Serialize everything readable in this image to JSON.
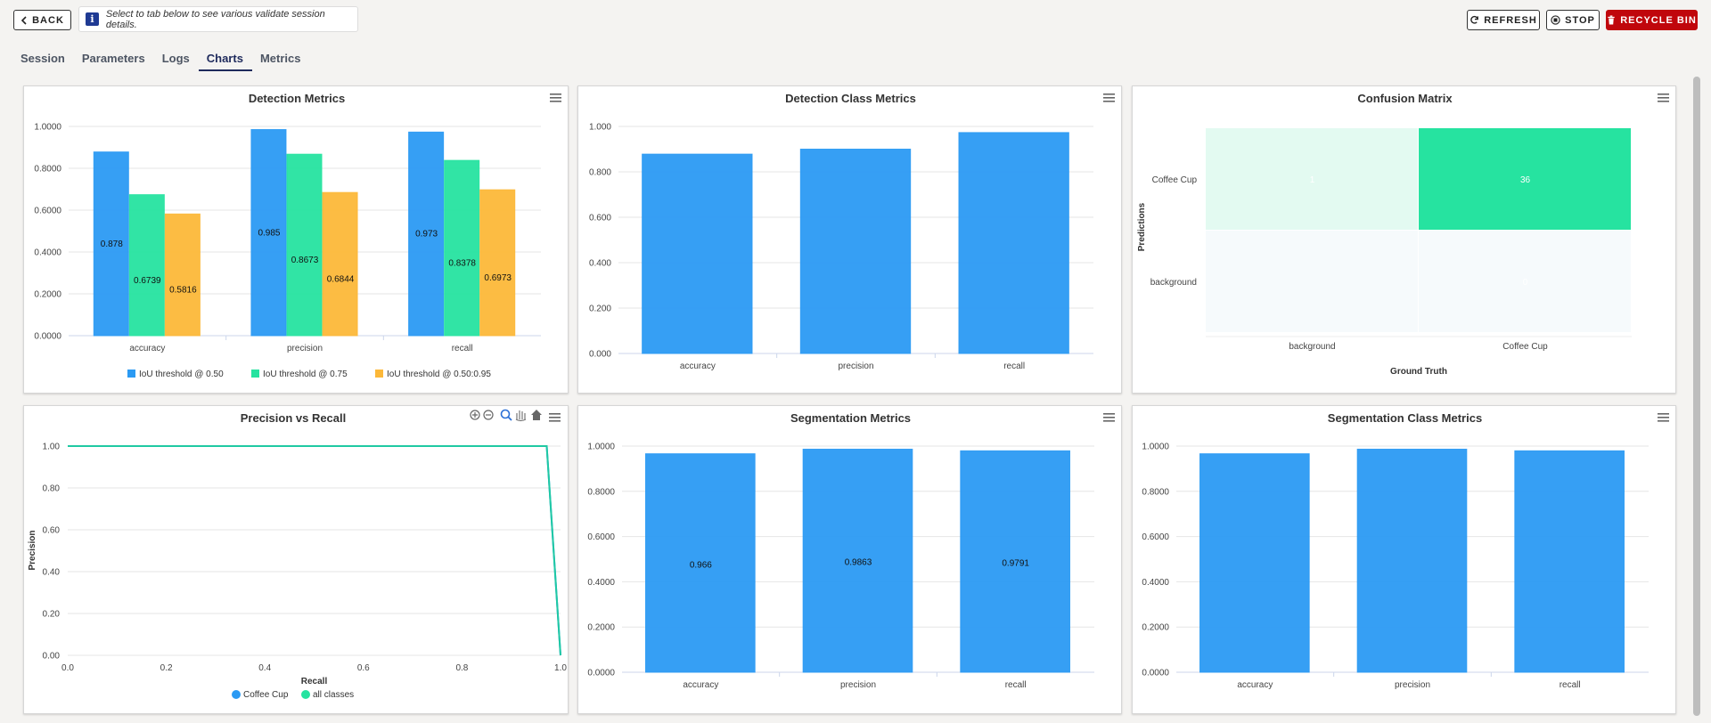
{
  "toolbar": {
    "back_label": "BACK",
    "info_text": "Select to tab below to see various validate session details.",
    "refresh_label": "REFRESH",
    "stop_label": "STOP",
    "recycle_label": "RECYCLE BIN"
  },
  "tabs": [
    {
      "label": "Session",
      "active": false
    },
    {
      "label": "Parameters",
      "active": false
    },
    {
      "label": "Logs",
      "active": false
    },
    {
      "label": "Charts",
      "active": true
    },
    {
      "label": "Metrics",
      "active": false
    }
  ],
  "colors": {
    "blue": "#2b9af3",
    "green": "#26e3a0",
    "orange": "#fcb839",
    "teal": "#20c9a3",
    "danger": "#c0060c"
  },
  "chart_data": [
    {
      "id": "detection-metrics",
      "type": "bar",
      "title": "Detection Metrics",
      "categories": [
        "accuracy",
        "precision",
        "recall"
      ],
      "series": [
        {
          "name": "IoU threshold @ 0.50",
          "values": [
            0.878,
            0.985,
            0.973
          ],
          "labels": [
            "0.878",
            "0.985",
            "0.973"
          ]
        },
        {
          "name": "IoU threshold @ 0.75",
          "values": [
            0.6739,
            0.8673,
            0.8378
          ],
          "labels": [
            "0.6739",
            "0.8673",
            "0.8378"
          ]
        },
        {
          "name": "IoU threshold @ 0.50:0.95",
          "values": [
            0.5816,
            0.6844,
            0.6973
          ],
          "labels": [
            "0.5816",
            "0.6844",
            "0.6973"
          ]
        }
      ],
      "yticks": [
        "0.0000",
        "0.2000",
        "0.4000",
        "0.6000",
        "0.8000",
        "1.0000"
      ],
      "ylim": [
        0,
        1
      ],
      "legend": "bottom"
    },
    {
      "id": "detection-class-metrics",
      "type": "bar",
      "title": "Detection Class Metrics",
      "categories": [
        "accuracy",
        "precision",
        "recall"
      ],
      "series": [
        {
          "values": [
            0.878,
            0.9,
            0.973
          ]
        }
      ],
      "yticks": [
        "0.000",
        "0.200",
        "0.400",
        "0.600",
        "0.800",
        "1.000"
      ],
      "ylim": [
        0,
        1
      ]
    },
    {
      "id": "confusion-matrix",
      "type": "heatmap",
      "title": "Confusion Matrix",
      "x_categories": [
        "background",
        "Coffee Cup"
      ],
      "y_categories": [
        "Coffee Cup",
        "background"
      ],
      "xlabel": "Ground Truth",
      "ylabel": "Predictions",
      "cells": [
        {
          "x": 0,
          "y": 0,
          "value": 1,
          "label": "1"
        },
        {
          "x": 1,
          "y": 0,
          "value": 36,
          "label": "36"
        },
        {
          "x": 0,
          "y": 1,
          "value": 0,
          "label": ""
        },
        {
          "x": 1,
          "y": 1,
          "value": 0,
          "label": "0"
        }
      ]
    },
    {
      "id": "precision-vs-recall",
      "type": "line",
      "title": "Precision vs Recall",
      "xlabel": "Recall",
      "ylabel": "Precision",
      "xticks": [
        "0.0",
        "0.2",
        "0.4",
        "0.6",
        "0.8",
        "1.0"
      ],
      "yticks": [
        "0.00",
        "0.20",
        "0.40",
        "0.60",
        "0.80",
        "1.00"
      ],
      "xlim": [
        0,
        1
      ],
      "ylim": [
        0,
        1
      ],
      "series": [
        {
          "name": "Coffee Cup",
          "points": [
            [
              0,
              1
            ],
            [
              0.972,
              1
            ],
            [
              1,
              0
            ]
          ]
        },
        {
          "name": "all classes",
          "points": [
            [
              0,
              1
            ],
            [
              0.972,
              1
            ],
            [
              1,
              0
            ]
          ]
        }
      ],
      "legend": "bottom"
    },
    {
      "id": "segmentation-metrics",
      "type": "bar",
      "title": "Segmentation Metrics",
      "categories": [
        "accuracy",
        "precision",
        "recall"
      ],
      "series": [
        {
          "values": [
            0.966,
            0.9863,
            0.9791
          ],
          "labels": [
            "0.966",
            "0.9863",
            "0.9791"
          ]
        }
      ],
      "yticks": [
        "0.0000",
        "0.2000",
        "0.4000",
        "0.6000",
        "0.8000",
        "1.0000"
      ],
      "ylim": [
        0,
        1
      ]
    },
    {
      "id": "segmentation-class-metrics",
      "type": "bar",
      "title": "Segmentation Class Metrics",
      "categories": [
        "accuracy",
        "precision",
        "recall"
      ],
      "series": [
        {
          "values": [
            0.966,
            0.9863,
            0.9791
          ]
        }
      ],
      "yticks": [
        "0.0000",
        "0.2000",
        "0.4000",
        "0.6000",
        "0.8000",
        "1.0000"
      ],
      "ylim": [
        0,
        1
      ]
    }
  ]
}
